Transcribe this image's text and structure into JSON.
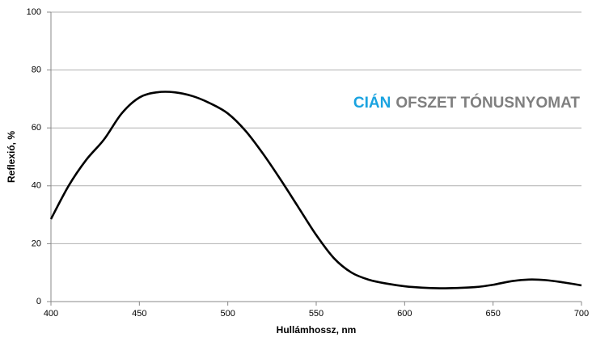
{
  "chart_data": {
    "type": "line",
    "annotation": [
      {
        "text": "CIÁN",
        "color": "#1aa3e0"
      },
      {
        "text": "OFSZET TÓNUSNYOMAT",
        "color": "#7f7f7f"
      }
    ],
    "xlabel": "Hullámhossz, nm",
    "ylabel": "Reflexió, %",
    "x": [
      400,
      410,
      420,
      430,
      440,
      450,
      460,
      470,
      480,
      490,
      500,
      510,
      520,
      530,
      540,
      550,
      560,
      570,
      580,
      590,
      600,
      610,
      620,
      630,
      640,
      650,
      660,
      670,
      680,
      690,
      700
    ],
    "series": [
      {
        "name": "Reflexió",
        "color": "#000000",
        "values": [
          28.5,
          40,
          49,
          56,
          65,
          70.5,
          72.3,
          72.3,
          71,
          68.5,
          65,
          59,
          51,
          42,
          32.5,
          23,
          15,
          10,
          7.5,
          6.2,
          5.3,
          4.8,
          4.6,
          4.7,
          5,
          5.8,
          7,
          7.6,
          7.4,
          6.6,
          5.6
        ]
      }
    ],
    "xlim": [
      400,
      700
    ],
    "xticks": [
      400,
      450,
      500,
      550,
      600,
      650,
      700
    ],
    "ylim": [
      0,
      100
    ],
    "yticks": [
      0,
      20,
      40,
      60,
      80,
      100
    ],
    "grid": true
  }
}
